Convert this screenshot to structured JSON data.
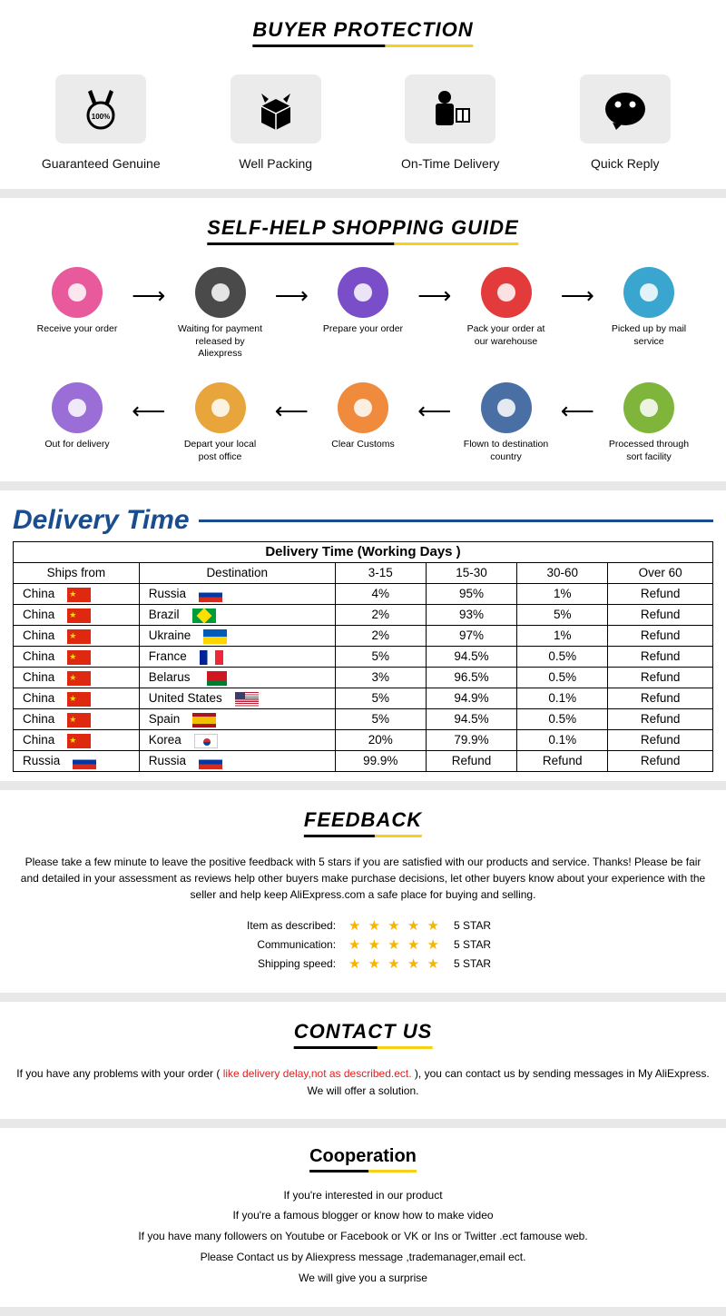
{
  "buyerProtection": {
    "title": "BUYER PROTECTION",
    "items": [
      {
        "label": "Guaranteed Genuine",
        "icon": "medal"
      },
      {
        "label": "Well Packing",
        "icon": "box"
      },
      {
        "label": "On-Time Delivery",
        "icon": "courier"
      },
      {
        "label": "Quick Reply",
        "icon": "chat"
      }
    ]
  },
  "guide": {
    "title": "SELF-HELP SHOPPING GUIDE",
    "row1": [
      {
        "label": "Receive your order",
        "color": "#e85a9c"
      },
      {
        "label": "Waiting for payment released by Aliexpress",
        "color": "#4a4a4a"
      },
      {
        "label": "Prepare your order",
        "color": "#7a4dc9"
      },
      {
        "label": "Pack your order at our warehouse",
        "color": "#e33b3b"
      },
      {
        "label": "Picked up by mail service",
        "color": "#3aa6d0"
      }
    ],
    "row2": [
      {
        "label": "Out for delivery",
        "color": "#9a6dd7"
      },
      {
        "label": "Depart your local post office",
        "color": "#e8a53b"
      },
      {
        "label": "Clear Customs",
        "color": "#f08a3c"
      },
      {
        "label": "Flown to destination country",
        "color": "#4a6fa5"
      },
      {
        "label": "Processed through sort facility",
        "color": "#7fb53b"
      }
    ]
  },
  "delivery": {
    "title": "Delivery Time",
    "tableTitle": "Delivery Time (Working Days )",
    "headers": [
      "Ships from",
      "Destination",
      "3-15",
      "15-30",
      "30-60",
      "Over 60"
    ],
    "rows": [
      {
        "from": "China",
        "fflag": "cn",
        "dest": "Russia",
        "dflag": "ru",
        "c": [
          "4%",
          "95%",
          "1%",
          "Refund"
        ]
      },
      {
        "from": "China",
        "fflag": "cn",
        "dest": "Brazil",
        "dflag": "br",
        "c": [
          "2%",
          "93%",
          "5%",
          "Refund"
        ]
      },
      {
        "from": "China",
        "fflag": "cn",
        "dest": "Ukraine",
        "dflag": "ua",
        "c": [
          "2%",
          "97%",
          "1%",
          "Refund"
        ]
      },
      {
        "from": "China",
        "fflag": "cn",
        "dest": "France",
        "dflag": "fr",
        "c": [
          "5%",
          "94.5%",
          "0.5%",
          "Refund"
        ]
      },
      {
        "from": "China",
        "fflag": "cn",
        "dest": "Belarus",
        "dflag": "by",
        "c": [
          "3%",
          "96.5%",
          "0.5%",
          "Refund"
        ]
      },
      {
        "from": "China",
        "fflag": "cn",
        "dest": "United States",
        "dflag": "us",
        "c": [
          "5%",
          "94.9%",
          "0.1%",
          "Refund"
        ]
      },
      {
        "from": "China",
        "fflag": "cn",
        "dest": "Spain",
        "dflag": "es",
        "c": [
          "5%",
          "94.5%",
          "0.5%",
          "Refund"
        ]
      },
      {
        "from": "China",
        "fflag": "cn",
        "dest": "Korea",
        "dflag": "kr",
        "c": [
          "20%",
          "79.9%",
          "0.1%",
          "Refund"
        ]
      },
      {
        "from": "Russia",
        "fflag": "ru",
        "dest": "Russia",
        "dflag": "ru",
        "c": [
          "99.9%",
          "Refund",
          "Refund",
          "Refund"
        ]
      }
    ],
    "colWidths": [
      "18%",
      "28%",
      "13%",
      "13%",
      "13%",
      "15%"
    ]
  },
  "feedback": {
    "title": "FEEDBACK",
    "text": "Please take a few minute to leave the positive feedback with 5 stars if you are satisfied with our products and service. Thanks! Please be fair and detailed in your assessment as reviews help other buyers make purchase decisions, let other buyers know about your experience with the seller and help keep AliExpress.com a safe place for buying and selling.",
    "ratings": [
      {
        "label": "Item as described:",
        "score": "5 STAR"
      },
      {
        "label": "Communication:",
        "score": "5 STAR"
      },
      {
        "label": "Shipping speed:",
        "score": "5 STAR"
      }
    ],
    "stars": "★ ★ ★ ★ ★"
  },
  "contact": {
    "title": "CONTACT US",
    "pre": "If you have any problems with your order ( ",
    "red": "like delivery delay,not as described.ect.",
    "post": " ), you can contact us by sending messages in My AliExpress. We will offer a solution."
  },
  "coop": {
    "title": "Cooperation",
    "lines": [
      "If you're interested in our product",
      "If you're a famous blogger or know how to make video",
      "If you have many followers on Youtube or Facebook or VK or Ins or Twitter .ect famouse web.",
      "Please Contact us by Aliexpress message ,trademanager,email ect.",
      "We will give you a surprise"
    ]
  }
}
